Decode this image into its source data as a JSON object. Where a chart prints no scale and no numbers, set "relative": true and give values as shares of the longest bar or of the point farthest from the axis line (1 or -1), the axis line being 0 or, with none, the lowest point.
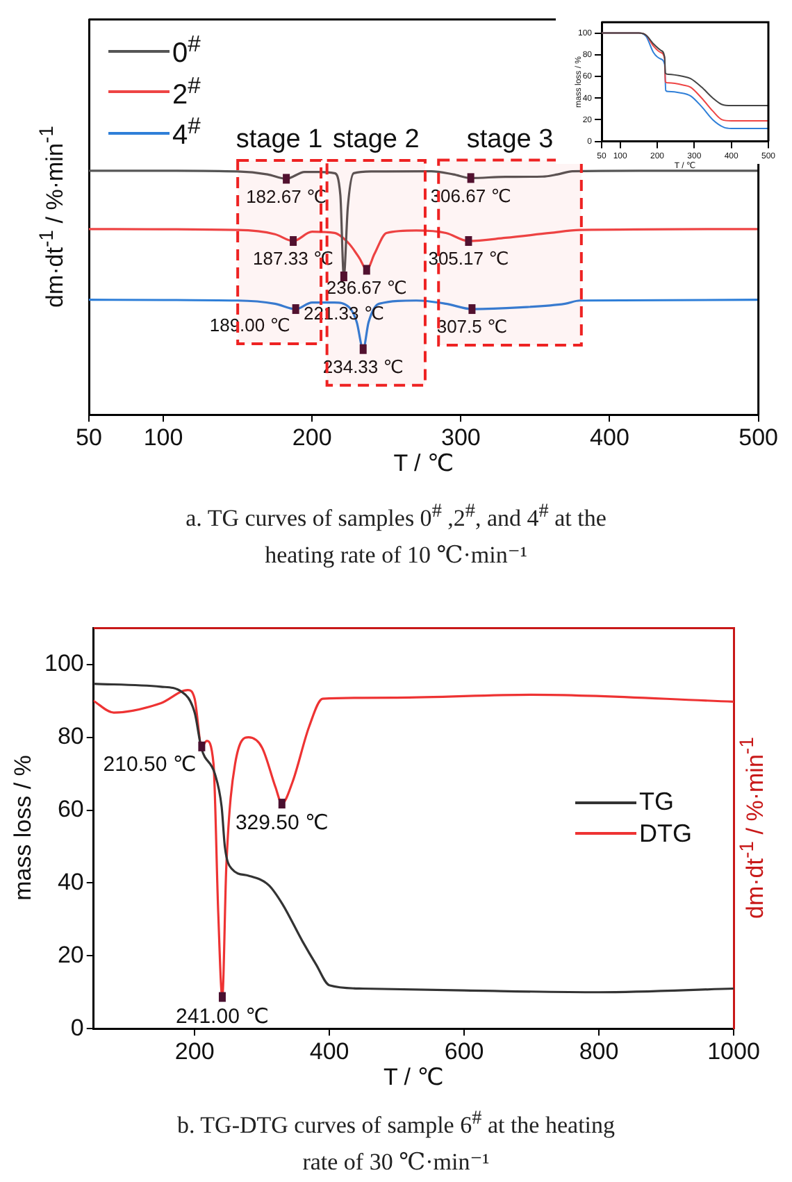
{
  "chart_data": [
    {
      "type": "line",
      "title": "a. TG curves of samples 0$^{#}$ ,2$^{#}$, and 4$^{#}$ at the heating rate of 10 ℃·min⁻¹",
      "xlabel": "T / ℃",
      "ylabel": "dm·dt$^{-1}$ / %·min$^{-1}$",
      "relative": true,
      "xlim": [
        50,
        500
      ],
      "xticks": [
        50,
        100,
        200,
        300,
        400,
        500
      ],
      "legend": "top left",
      "series": [
        {
          "name": "0$^{#}$",
          "color": "#555555",
          "x": [
            50,
            100,
            150,
            170,
            182.67,
            195,
            205,
            215,
            219,
            221.33,
            224,
            228,
            240,
            280,
            295,
            306.67,
            330,
            355,
            365,
            375,
            420,
            500
          ],
          "values": [
            1.0,
            1.0,
            0.997,
            0.985,
            0.967,
            0.995,
            0.995,
            0.99,
            0.9,
            0.567,
            0.85,
            0.99,
            0.997,
            0.998,
            0.985,
            0.97,
            0.975,
            0.976,
            0.985,
            0.998,
            1.0,
            1.0
          ]
        },
        {
          "name": "2$^{#}$",
          "color": "#ee4444",
          "x": [
            50,
            150,
            175,
            187.33,
            200,
            215,
            225,
            232,
            236.67,
            242,
            250,
            270,
            290,
            305.17,
            330,
            360,
            380,
            500
          ],
          "values": [
            0.761,
            0.757,
            0.74,
            0.712,
            0.75,
            0.745,
            0.7,
            0.64,
            0.594,
            0.66,
            0.745,
            0.755,
            0.745,
            0.712,
            0.725,
            0.745,
            0.757,
            0.761
          ]
        },
        {
          "name": "4$^{#}$",
          "color": "#2f7fd8",
          "x": [
            50,
            150,
            175,
            189,
            200,
            215,
            225,
            230,
            234.33,
            238,
            245,
            270,
            290,
            307.5,
            340,
            370,
            380,
            500
          ],
          "values": [
            0.471,
            0.468,
            0.455,
            0.433,
            0.46,
            0.46,
            0.44,
            0.38,
            0.269,
            0.38,
            0.455,
            0.468,
            0.455,
            0.433,
            0.44,
            0.455,
            0.468,
            0.471
          ]
        }
      ],
      "bands": [
        {
          "axis": "x",
          "from": 150,
          "to": 206,
          "label": "stage 1",
          "color": "#ee2222"
        },
        {
          "axis": "x",
          "from": 210,
          "to": 276,
          "label": "stage 2",
          "color": "#ee2222"
        },
        {
          "axis": "x",
          "from": 285,
          "to": 381,
          "label": "stage 3",
          "color": "#ee2222"
        }
      ],
      "annotations": [
        {
          "text": "182.67 ℃",
          "x": 182.67,
          "y": 0.967
        },
        {
          "text": "306.67 ℃",
          "x": 306.67,
          "y": 0.97
        },
        {
          "text": "187.33 ℃",
          "x": 187.33,
          "y": 0.712
        },
        {
          "text": "305.17 ℃",
          "x": 305.17,
          "y": 0.712
        },
        {
          "text": "236.67 ℃",
          "x": 236.67,
          "y": 0.594
        },
        {
          "text": "221.33 ℃",
          "x": 221.33,
          "y": 0.567
        },
        {
          "text": "189.00 ℃",
          "x": 189,
          "y": 0.433
        },
        {
          "text": "307.5 ℃",
          "x": 307.5,
          "y": 0.433
        },
        {
          "text": "234.33 ℃",
          "x": 234.33,
          "y": 0.269
        }
      ]
    },
    {
      "type": "line",
      "xlabel": "T / ℃",
      "ylabel": "mass loss / %",
      "xlim": [
        50,
        500
      ],
      "xticks": [
        50,
        100,
        200,
        300,
        400,
        500
      ],
      "ylim": [
        0,
        110
      ],
      "yticks": [
        0,
        20,
        40,
        60,
        80,
        100
      ],
      "series": [
        {
          "color": "#444444",
          "x": [
            50,
            150,
            170,
            190,
            210,
            220,
            222,
            230,
            270,
            290,
            320,
            350,
            375,
            400,
            500
          ],
          "values": [
            100,
            100,
            98,
            90,
            84,
            78,
            63,
            62,
            60,
            58,
            50,
            40,
            34,
            33,
            33
          ]
        },
        {
          "color": "#ee4444",
          "x": [
            50,
            150,
            170,
            190,
            210,
            220,
            222,
            230,
            270,
            290,
            320,
            350,
            375,
            400,
            500
          ],
          "values": [
            100,
            100,
            98,
            88,
            82,
            76,
            55,
            54,
            52,
            50,
            40,
            28,
            20,
            19,
            19
          ]
        },
        {
          "color": "#2f7fd8",
          "x": [
            50,
            150,
            170,
            190,
            210,
            220,
            223,
            230,
            260,
            290,
            320,
            350,
            380,
            400,
            500
          ],
          "values": [
            100,
            100,
            97,
            82,
            76,
            71,
            47,
            46,
            45,
            42,
            32,
            20,
            13,
            12,
            12
          ]
        }
      ]
    },
    {
      "type": "line",
      "title": "b. TG-DTG curves of sample 6$^{#}$ at the heating rate of 30 ℃·min⁻¹",
      "xlabel": "T / ℃",
      "ylabel": "mass loss / %",
      "y2label": "dm·dt$^{-1}$ / %·min$^{-1}$",
      "xlim": [
        50,
        1000
      ],
      "xticks": [
        200,
        400,
        600,
        800,
        1000
      ],
      "ylim": [
        0,
        110
      ],
      "yticks": [
        0,
        20,
        40,
        60,
        80,
        100
      ],
      "legend": "right",
      "series": [
        {
          "name": "TG",
          "color": "#333333",
          "x": [
            50,
            150,
            180,
            200,
            210,
            230,
            240,
            245,
            255,
            280,
            310,
            330,
            360,
            380,
            400,
            450,
            600,
            800,
            1000
          ],
          "values": [
            94.7,
            93.9,
            92.6,
            86.8,
            77,
            70,
            61,
            49.7,
            43.9,
            42,
            39.4,
            34.3,
            24,
            17.7,
            11.9,
            11,
            10.5,
            10,
            11
          ]
        },
        {
          "name": "DTG",
          "color": "#ee3333",
          "x": [
            50,
            80,
            150,
            190,
            200,
            210.5,
            218,
            228,
            235,
            241,
            247,
            260,
            280,
            300,
            320,
            329.5,
            345,
            370,
            390,
            500,
            700,
            1000
          ],
          "values": [
            90,
            86.8,
            89.4,
            93,
            90.6,
            77.5,
            79,
            72.7,
            31.8,
            8.7,
            44.6,
            72.7,
            80,
            77.2,
            66.3,
            61.8,
            67.6,
            83,
            90.6,
            90.9,
            91.7,
            89.8
          ]
        }
      ],
      "annotations": [
        {
          "text": "210.50 ℃",
          "x": 210.5,
          "y": 77.5
        },
        {
          "text": "329.50 ℃",
          "x": 329.5,
          "y": 61.8
        },
        {
          "text": "241.00 ℃",
          "x": 241,
          "y": 8.7
        }
      ]
    }
  ]
}
